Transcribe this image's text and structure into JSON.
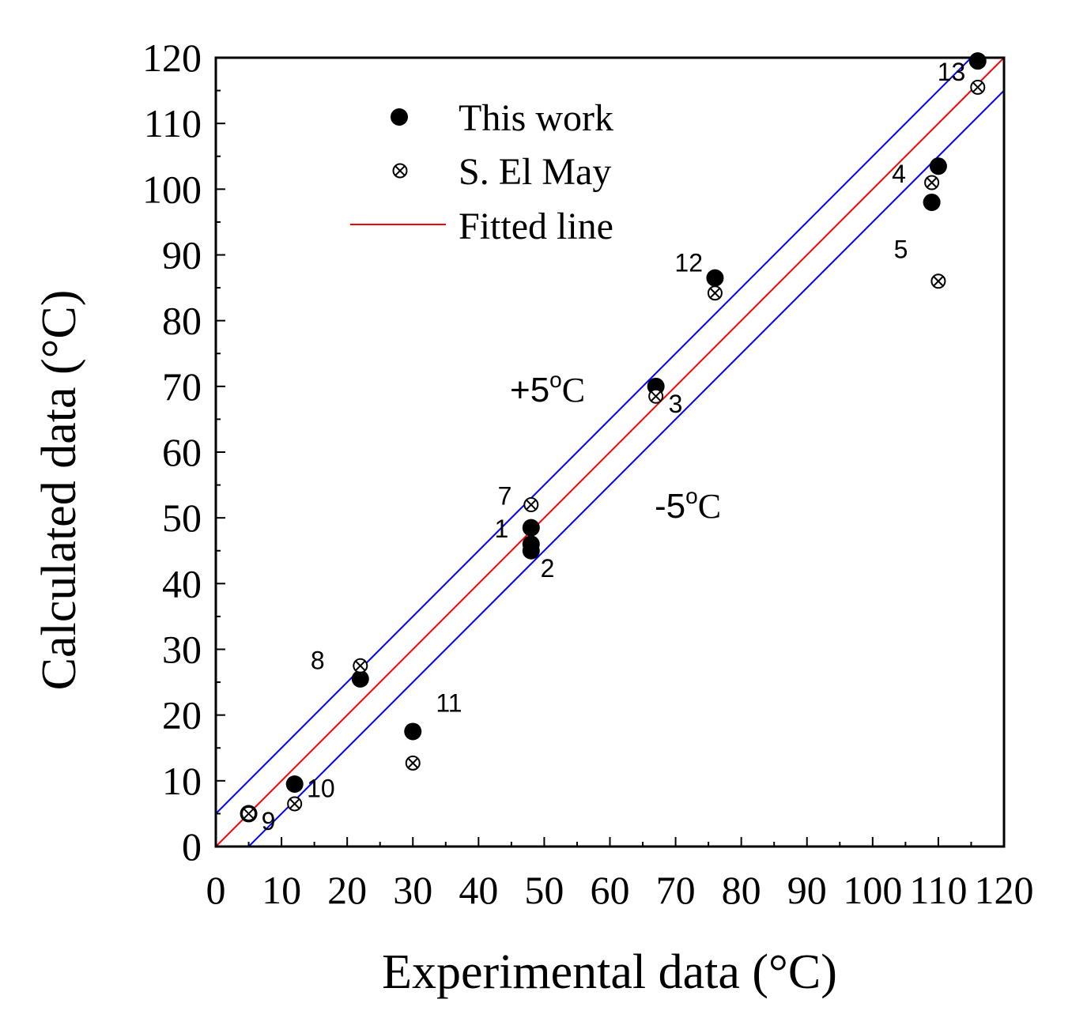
{
  "chart_data": {
    "type": "scatter",
    "xlabel": "Experimental data (°C)",
    "ylabel": "Calculated data (°C)",
    "xlim": [
      0,
      120
    ],
    "ylim": [
      0,
      120
    ],
    "x_ticks": [
      "0",
      "10",
      "20",
      "30",
      "40",
      "50",
      "60",
      "70",
      "80",
      "90",
      "100",
      "110",
      "120"
    ],
    "y_ticks": [
      "0",
      "10",
      "20",
      "30",
      "40",
      "50",
      "60",
      "70",
      "80",
      "90",
      "100",
      "110",
      "120"
    ],
    "series": [
      {
        "name": "This work",
        "marker": "filled-circle",
        "points": [
          {
            "x": 48,
            "y": 48.5
          },
          {
            "x": 48,
            "y": 46
          },
          {
            "x": 48,
            "y": 45
          },
          {
            "x": 67,
            "y": 70
          },
          {
            "x": 110,
            "y": 103.5
          },
          {
            "x": 109,
            "y": 98
          },
          {
            "x": 22,
            "y": 25.5
          },
          {
            "x": 5,
            "y": 5
          },
          {
            "x": 12,
            "y": 9.5
          },
          {
            "x": 30,
            "y": 17.5
          },
          {
            "x": 76,
            "y": 86.5
          },
          {
            "x": 116,
            "y": 119.5
          }
        ]
      },
      {
        "name": "S. El May",
        "marker": "circle-x",
        "points": [
          {
            "x": 67,
            "y": 68.5
          },
          {
            "x": 109,
            "y": 101
          },
          {
            "x": 110,
            "y": 86
          },
          {
            "x": 48,
            "y": 52
          },
          {
            "x": 22,
            "y": 27.5
          },
          {
            "x": 5,
            "y": 5
          },
          {
            "x": 12,
            "y": 6.5
          },
          {
            "x": 30,
            "y": 12.7
          },
          {
            "x": 76,
            "y": 84.2
          },
          {
            "x": 116,
            "y": 115.5
          }
        ]
      }
    ],
    "lines": [
      {
        "name": "Fitted line",
        "color": "#ff0000",
        "x": [
          0,
          120
        ],
        "y": [
          0,
          120
        ]
      },
      {
        "name": "+5°C",
        "color": "#0000ff",
        "x": [
          0,
          120
        ],
        "y": [
          5,
          125
        ]
      },
      {
        "name": "-5°C",
        "color": "#0000ff",
        "x": [
          0,
          120
        ],
        "y": [
          -5,
          115
        ]
      }
    ],
    "legend": {
      "position": "top-left",
      "entries": [
        "This work",
        "S. El May",
        "Fitted line"
      ]
    },
    "band_labels": {
      "plus": "+5",
      "minus": "-5",
      "unit": "C",
      "degree": "o"
    },
    "point_labels": [
      {
        "text": "1",
        "x": 43.5,
        "y": 47
      },
      {
        "text": "2",
        "x": 50.5,
        "y": 41
      },
      {
        "text": "3",
        "x": 70,
        "y": 66
      },
      {
        "text": "4",
        "x": 104,
        "y": 101
      },
      {
        "text": "5",
        "x": 104.3,
        "y": 89.5
      },
      {
        "text": "7",
        "x": 44,
        "y": 52
      },
      {
        "text": "8",
        "x": 15.5,
        "y": 27
      },
      {
        "text": "9",
        "x": 8,
        "y": 2.5
      },
      {
        "text": "10",
        "x": 16,
        "y": 7.5
      },
      {
        "text": "11",
        "x": 35.5,
        "y": 20.5
      },
      {
        "text": "12",
        "x": 72,
        "y": 87.5
      },
      {
        "text": "13",
        "x": 112,
        "y": 116.5
      }
    ]
  }
}
